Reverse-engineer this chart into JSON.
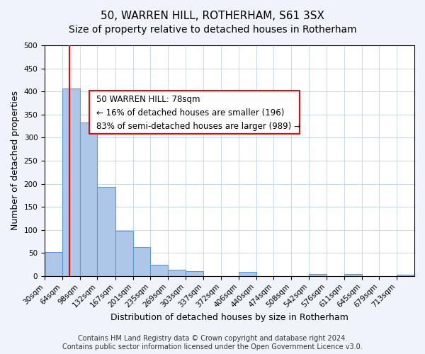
{
  "title": "50, WARREN HILL, ROTHERHAM, S61 3SX",
  "subtitle": "Size of property relative to detached houses in Rotherham",
  "xlabel": "Distribution of detached houses by size in Rotherham",
  "ylabel": "Number of detached properties",
  "bin_labels": [
    "30sqm",
    "64sqm",
    "98sqm",
    "132sqm",
    "167sqm",
    "201sqm",
    "235sqm",
    "269sqm",
    "303sqm",
    "337sqm",
    "372sqm",
    "406sqm",
    "440sqm",
    "474sqm",
    "508sqm",
    "542sqm",
    "576sqm",
    "611sqm",
    "645sqm",
    "679sqm",
    "713sqm"
  ],
  "bin_edges": [
    30,
    64,
    98,
    132,
    167,
    201,
    235,
    269,
    303,
    337,
    372,
    406,
    440,
    474,
    508,
    542,
    576,
    611,
    645,
    679,
    713,
    747
  ],
  "bar_heights": [
    52,
    406,
    332,
    193,
    98,
    62,
    24,
    14,
    10,
    0,
    0,
    9,
    0,
    0,
    0,
    5,
    0,
    4,
    0,
    0,
    3
  ],
  "bar_color": "#aec6e8",
  "bar_edgecolor": "#5b9bd5",
  "bar_linewidth": 0.8,
  "vline_x": 78,
  "vline_color": "red",
  "vline_linewidth": 1.5,
  "annotation_box_text": "50 WARREN HILL: 78sqm\n← 16% of detached houses are smaller (196)\n83% of semi-detached houses are larger (989) →",
  "ylim": [
    0,
    500
  ],
  "yticks": [
    0,
    50,
    100,
    150,
    200,
    250,
    300,
    350,
    400,
    450,
    500
  ],
  "background_color": "#f0f4fa",
  "plot_bg_color": "#ffffff",
  "grid_color": "#c8d8e8",
  "footer_text": "Contains HM Land Registry data © Crown copyright and database right 2024.\nContains public sector information licensed under the Open Government Licence v3.0.",
  "title_fontsize": 11,
  "subtitle_fontsize": 10,
  "xlabel_fontsize": 9,
  "ylabel_fontsize": 9,
  "tick_fontsize": 7.5,
  "annotation_fontsize": 8.5,
  "footer_fontsize": 7
}
